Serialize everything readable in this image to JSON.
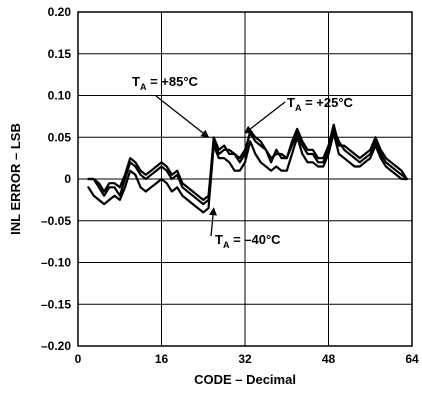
{
  "chart_data": {
    "type": "line",
    "title": "",
    "xlabel": "CODE – Decimal",
    "ylabel": "INL ERROR – LSB",
    "xlim": [
      0,
      64
    ],
    "ylim": [
      -0.2,
      0.2
    ],
    "xticks": [
      0,
      16,
      32,
      48,
      64
    ],
    "xtick_labels": [
      "0",
      "16",
      "32",
      "48",
      "64"
    ],
    "yticks": [
      0.2,
      0.15,
      0.1,
      0.05,
      0,
      -0.05,
      -0.1,
      -0.15,
      -0.2
    ],
    "ytick_labels": [
      "0.20",
      "0.15",
      "0.10",
      "0.05",
      "0",
      "–0.05",
      "–0.10",
      "–0.15",
      "–0.20"
    ],
    "grid": true,
    "series": [
      {
        "name": "T_A = +85°C",
        "x": [
          2,
          3,
          4,
          5,
          6,
          7,
          8,
          9,
          10,
          11,
          12,
          13,
          14,
          15,
          16,
          17,
          18,
          19,
          20,
          21,
          22,
          23,
          24,
          25,
          26,
          27,
          28,
          29,
          30,
          31,
          32,
          33,
          34,
          35,
          36,
          37,
          38,
          39,
          40,
          41,
          42,
          43,
          44,
          45,
          46,
          47,
          48,
          49,
          50,
          51,
          52,
          53,
          54,
          55,
          56,
          57,
          58,
          59,
          60,
          61,
          62,
          63
        ],
        "y": [
          0,
          0,
          -0.01,
          -0.02,
          -0.01,
          -0.01,
          -0.02,
          0,
          0.02,
          0.015,
          0.005,
          0,
          0.005,
          0.01,
          0.015,
          0.01,
          0,
          0.005,
          -0.01,
          -0.015,
          -0.02,
          -0.025,
          -0.03,
          -0.025,
          0.05,
          0.035,
          0.04,
          0.03,
          0.03,
          0.025,
          0.035,
          0.055,
          0.045,
          0.04,
          0.035,
          0.02,
          0.035,
          0.025,
          0.025,
          0.045,
          0.06,
          0.045,
          0.035,
          0.035,
          0.025,
          0.025,
          0.04,
          0.065,
          0.04,
          0.04,
          0.035,
          0.03,
          0.025,
          0.03,
          0.035,
          0.05,
          0.035,
          0.025,
          0.02,
          0.015,
          0.01,
          0
        ]
      },
      {
        "name": "T_A = +25°C",
        "x": [
          2,
          3,
          4,
          5,
          6,
          7,
          8,
          9,
          10,
          11,
          12,
          13,
          14,
          15,
          16,
          17,
          18,
          19,
          20,
          21,
          22,
          23,
          24,
          25,
          26,
          27,
          28,
          29,
          30,
          31,
          32,
          33,
          34,
          35,
          36,
          37,
          38,
          39,
          40,
          41,
          42,
          43,
          44,
          45,
          46,
          47,
          48,
          49,
          50,
          51,
          52,
          53,
          54,
          55,
          56,
          57,
          58,
          59,
          60,
          61,
          62,
          63
        ],
        "y": [
          0,
          0,
          -0.005,
          -0.015,
          -0.005,
          -0.005,
          -0.01,
          0.005,
          0.025,
          0.02,
          0.01,
          0.005,
          0.01,
          0.015,
          0.02,
          0.015,
          0.005,
          0.01,
          -0.005,
          -0.01,
          -0.015,
          -0.02,
          -0.025,
          -0.02,
          0.045,
          0.03,
          0.035,
          0.035,
          0.03,
          0.02,
          0.03,
          0.058,
          0.05,
          0.045,
          0.035,
          0.025,
          0.03,
          0.03,
          0.025,
          0.04,
          0.055,
          0.04,
          0.03,
          0.03,
          0.02,
          0.02,
          0.035,
          0.06,
          0.045,
          0.035,
          0.03,
          0.025,
          0.02,
          0.025,
          0.03,
          0.045,
          0.03,
          0.02,
          0.015,
          0.01,
          0.005,
          0
        ]
      },
      {
        "name": "T_A = –40°C",
        "x": [
          2,
          3,
          4,
          5,
          6,
          7,
          8,
          9,
          10,
          11,
          12,
          13,
          14,
          15,
          16,
          17,
          18,
          19,
          20,
          21,
          22,
          23,
          24,
          25,
          26,
          27,
          28,
          29,
          30,
          31,
          32,
          33,
          34,
          35,
          36,
          37,
          38,
          39,
          40,
          41,
          42,
          43,
          44,
          45,
          46,
          47,
          48,
          49,
          50,
          51,
          52,
          53,
          54,
          55,
          56,
          57,
          58,
          59,
          60,
          61,
          62,
          63
        ],
        "y": [
          -0.01,
          -0.02,
          -0.025,
          -0.03,
          -0.025,
          -0.02,
          -0.025,
          -0.01,
          0.01,
          0.005,
          -0.01,
          -0.015,
          -0.01,
          -0.005,
          0,
          -0.005,
          -0.015,
          -0.01,
          -0.02,
          -0.025,
          -0.03,
          -0.035,
          -0.04,
          -0.035,
          0.04,
          0.025,
          0.025,
          0.02,
          0.01,
          0.01,
          0.02,
          0.045,
          0.03,
          0.02,
          0.015,
          0.01,
          0.015,
          0.01,
          0.01,
          0.03,
          0.05,
          0.03,
          0.02,
          0.02,
          0.015,
          0.015,
          0.03,
          0.055,
          0.03,
          0.025,
          0.02,
          0.015,
          0.015,
          0.02,
          0.025,
          0.04,
          0.025,
          0.015,
          0.01,
          0.005,
          0,
          0
        ]
      }
    ],
    "annotations": [
      {
        "text": "T",
        "sub": "A",
        "rest": " = +85°C",
        "series": 0,
        "arrow_to": [
          25,
          0.05
        ]
      },
      {
        "text": "T",
        "sub": "A",
        "rest": " = +25°C",
        "series": 1,
        "arrow_to": [
          32,
          0.055
        ]
      },
      {
        "text": "T",
        "sub": "A",
        "rest": " = –40°C",
        "series": 2,
        "arrow_to": [
          26,
          -0.035
        ]
      }
    ]
  }
}
